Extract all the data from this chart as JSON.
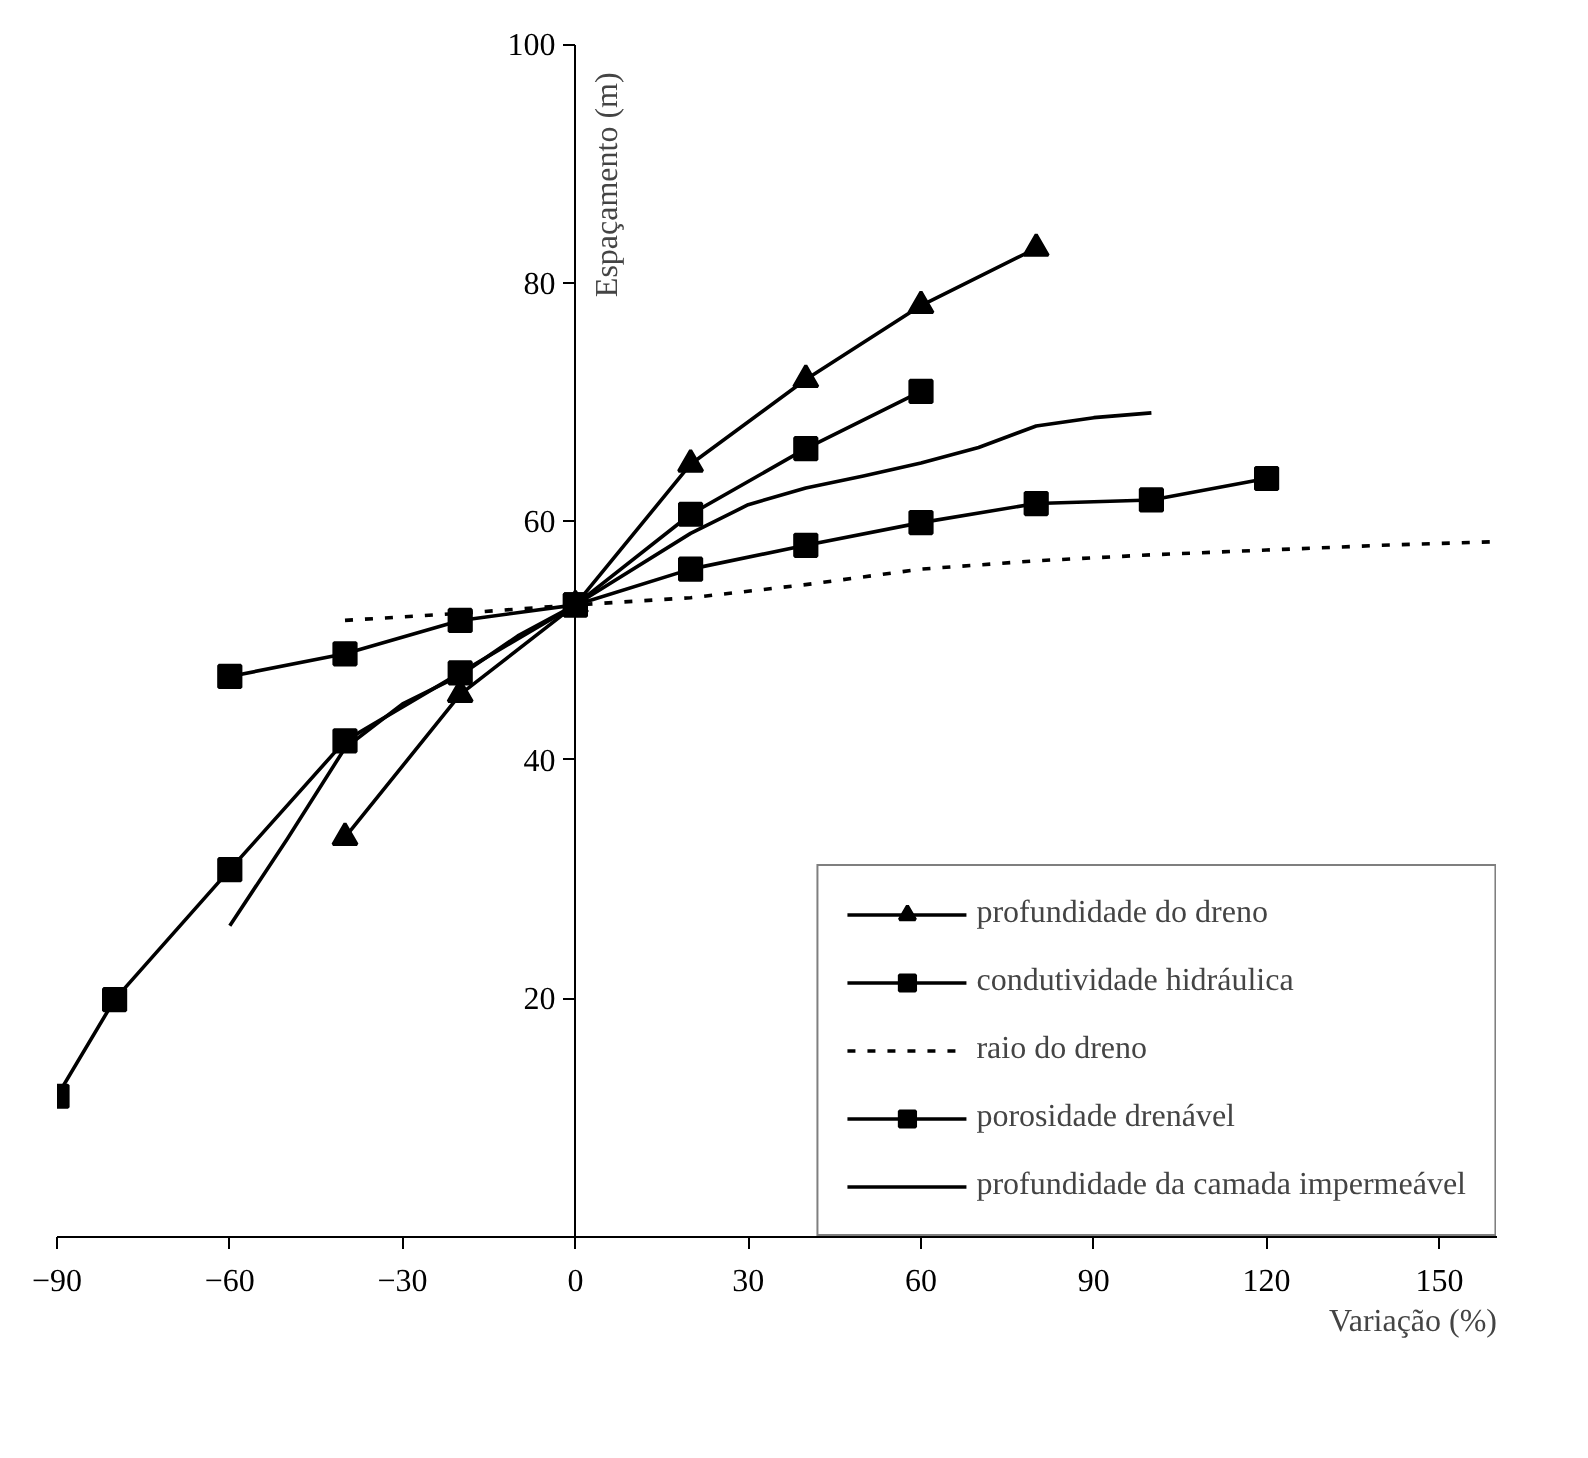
{
  "chart_data": {
    "type": "line",
    "xlabel": "Variação (%)",
    "ylabel": "Espaçamento (m)",
    "xlim": [
      -90,
      160
    ],
    "ylim": [
      0,
      100
    ],
    "xticks": [
      -90,
      -60,
      -30,
      0,
      30,
      60,
      90,
      120,
      150
    ],
    "yticks": [
      20,
      40,
      60,
      80,
      100
    ],
    "legend": "bottom right",
    "line_style": "solid",
    "series": [
      {
        "name": "profundidade do dreno",
        "color": "#000000",
        "marker": "triangle",
        "x": [
          -40,
          -20,
          0,
          20,
          40,
          60,
          80
        ],
        "values": [
          33.5,
          45.5,
          53,
          64.8,
          71.9,
          78.1,
          82.9
        ]
      },
      {
        "name": "condutividade hidráulica",
        "color": "#000000",
        "marker": "square",
        "x": [
          -90,
          -80,
          -60,
          -40,
          -20,
          0,
          20,
          40,
          60
        ],
        "values": [
          11.8,
          19.9,
          30.8,
          41.6,
          47.3,
          53,
          60.6,
          66.1,
          70.9
        ]
      },
      {
        "name": "raio do dreno",
        "color": "#000000",
        "marker": "none",
        "line_style": "dotted",
        "x": [
          -40,
          -20,
          0,
          20,
          40,
          60,
          80,
          100,
          120,
          140,
          160
        ],
        "values": [
          51.7,
          52.3,
          53,
          53.6,
          54.7,
          56.0,
          56.7,
          57.2,
          57.6,
          58.0,
          58.3
        ]
      },
      {
        "name": "porosidade drenável",
        "color": "#000000",
        "marker": "square",
        "x": [
          -60,
          -40,
          -20,
          0,
          20,
          40,
          60,
          80,
          100,
          120
        ],
        "values": [
          47.0,
          48.9,
          51.7,
          53,
          56.0,
          58.0,
          59.9,
          61.5,
          61.8,
          63.6
        ]
      },
      {
        "name": "profundidade da camada impermeável",
        "color": "#000000",
        "marker": "none",
        "x": [
          -60,
          -50,
          -40,
          -30,
          -20,
          -10,
          0,
          20,
          30,
          40,
          50,
          60,
          70,
          80,
          90,
          100
        ],
        "values": [
          26.1,
          33.4,
          41.0,
          44.7,
          47.1,
          50.4,
          53,
          59.0,
          61.4,
          62.8,
          63.8,
          64.9,
          66.2,
          68.0,
          68.7,
          69.1
        ]
      }
    ]
  }
}
